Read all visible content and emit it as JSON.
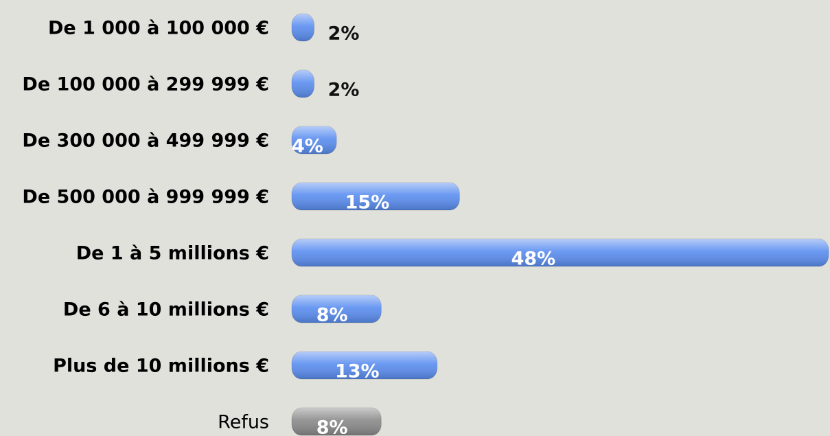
{
  "chart_data": {
    "type": "hbar",
    "categories": [
      "De 1 000 à 100 000 €",
      "De 100 000 à 299 999 €",
      "De 300 000 à 499 999 €",
      "De 500 000 à 999 999 €",
      "De 1 à 5 millions €",
      "De 6 à 10 millions €",
      "Plus de 10 millions €",
      "Refus"
    ],
    "values": [
      2,
      2,
      4,
      15,
      48,
      8,
      13,
      8
    ],
    "value_labels": [
      "2%",
      "2%",
      "4%",
      "15%",
      "48%",
      "8%",
      "13%",
      "8%"
    ],
    "colors": [
      "#5b8ef0",
      "#5b8ef0",
      "#5b8ef0",
      "#5b8ef0",
      "#5b8ef0",
      "#5b8ef0",
      "#5b8ef0",
      "#8a8a8a"
    ]
  }
}
